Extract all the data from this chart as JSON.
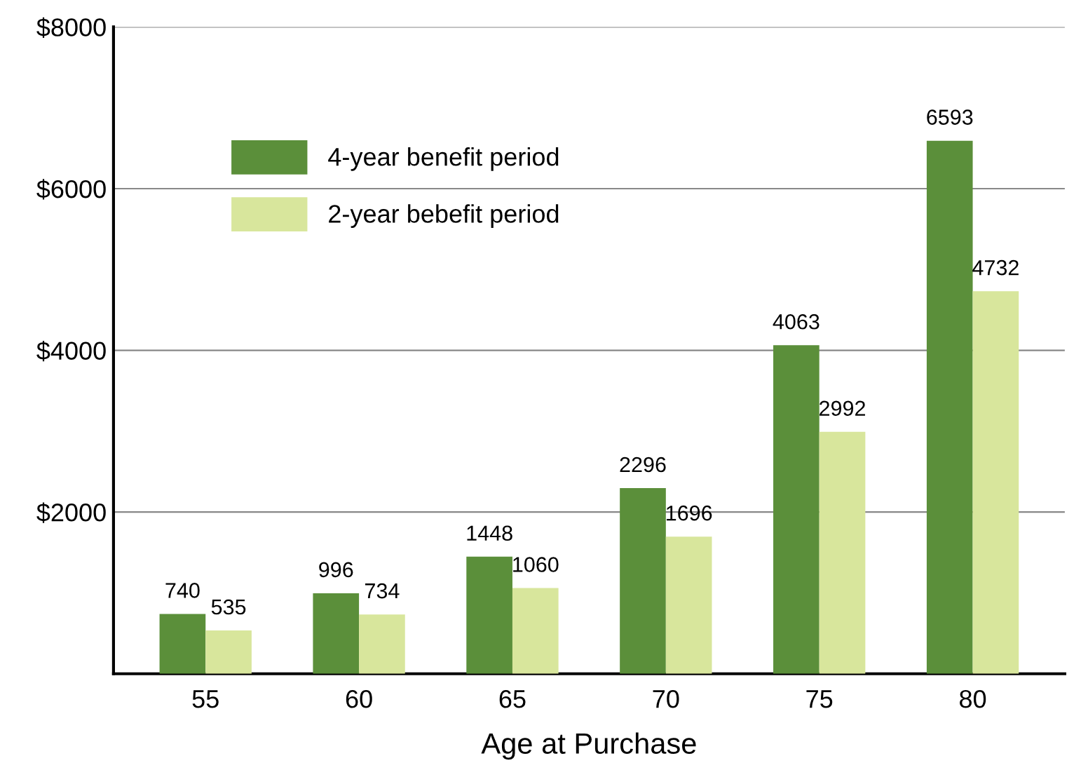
{
  "chart_data": {
    "type": "bar",
    "xlabel": "Age at Purchase",
    "categories": [
      "55",
      "60",
      "65",
      "70",
      "75",
      "80"
    ],
    "series": [
      {
        "name": "4-year benefit period",
        "color": "#5b8f3a",
        "values": [
          740,
          996,
          1448,
          2296,
          4063,
          6593
        ]
      },
      {
        "name": "2-year bebefit period",
        "color": "#d8e69c",
        "values": [
          535,
          734,
          1060,
          1696,
          2992,
          4732
        ]
      }
    ],
    "ylim": [
      0,
      8000
    ],
    "yticks": [
      {
        "value": 2000,
        "label": "$2000"
      },
      {
        "value": 4000,
        "label": "$4000"
      },
      {
        "value": 6000,
        "label": "$6000"
      },
      {
        "value": 8000,
        "label": "$8000"
      }
    ],
    "grid": "y",
    "legend": "top left",
    "data_labels": true
  }
}
